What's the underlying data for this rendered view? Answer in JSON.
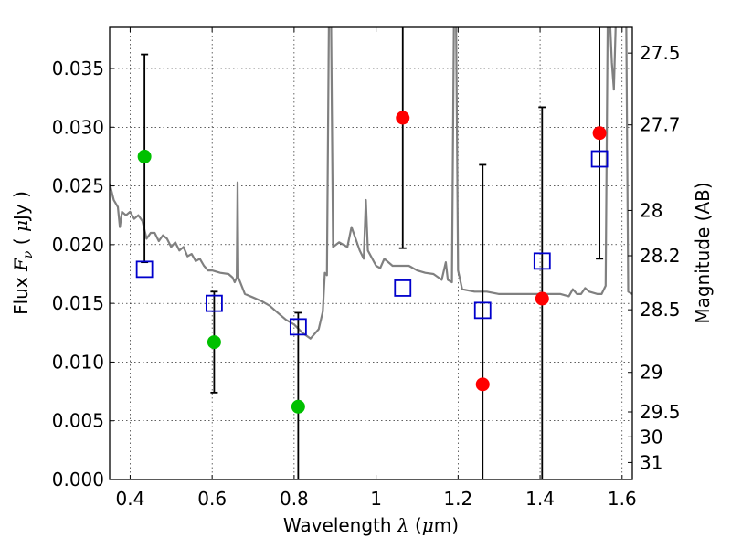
{
  "chart_data": {
    "type": "scatter",
    "title": "",
    "xlabel": "Wavelength λ (μm)",
    "ylabel": "Flux F_ν ( μJy )",
    "y2label": "Magnitude (AB)",
    "xlabel_parts": {
      "main": "Wavelength ",
      "sym": "λ",
      "paren_open": " (",
      "unit": "μ",
      "unit_rest": "m)"
    },
    "ylabel_parts": {
      "main": "Flux ",
      "F": "F",
      "nu": "ν",
      "paren_open": " ( ",
      "mu": "μ",
      "rest": "Jy )"
    },
    "xlim": [
      0.35,
      1.625
    ],
    "ylim": [
      0.0,
      0.0385
    ],
    "grid": true,
    "x_ticks": [
      {
        "value": 0.4,
        "label": "0.4"
      },
      {
        "value": 0.6,
        "label": "0.6"
      },
      {
        "value": 0.8,
        "label": "0.8"
      },
      {
        "value": 1.0,
        "label": "1"
      },
      {
        "value": 1.2,
        "label": "1.2"
      },
      {
        "value": 1.4,
        "label": "1.4"
      },
      {
        "value": 1.6,
        "label": "1.6"
      }
    ],
    "y_ticks": [
      {
        "value": 0.0,
        "label": "0.000"
      },
      {
        "value": 0.005,
        "label": "0.005"
      },
      {
        "value": 0.01,
        "label": "0.010"
      },
      {
        "value": 0.015,
        "label": "0.015"
      },
      {
        "value": 0.02,
        "label": "0.020"
      },
      {
        "value": 0.025,
        "label": "0.025"
      },
      {
        "value": 0.03,
        "label": "0.030"
      },
      {
        "value": 0.035,
        "label": "0.035"
      }
    ],
    "y2_ticks": [
      {
        "mag": 27.5,
        "label": "27.5"
      },
      {
        "mag": 27.7,
        "label": "27.7"
      },
      {
        "mag": 28.0,
        "label": "28"
      },
      {
        "mag": 28.2,
        "label": "28.2"
      },
      {
        "mag": 28.5,
        "label": "28.5"
      },
      {
        "mag": 29.0,
        "label": "29"
      },
      {
        "mag": 29.5,
        "label": "29.5"
      },
      {
        "mag": 30.0,
        "label": "30"
      },
      {
        "mag": 31.0,
        "label": "31"
      }
    ],
    "series": [
      {
        "kind": "line",
        "color": "#808080",
        "points": [
          [
            0.35,
            0.0252
          ],
          [
            0.36,
            0.0238
          ],
          [
            0.37,
            0.0232
          ],
          [
            0.375,
            0.0215
          ],
          [
            0.38,
            0.0228
          ],
          [
            0.39,
            0.0225
          ],
          [
            0.4,
            0.0228
          ],
          [
            0.41,
            0.0222
          ],
          [
            0.42,
            0.0225
          ],
          [
            0.43,
            0.022
          ],
          [
            0.44,
            0.0205
          ],
          [
            0.45,
            0.021
          ],
          [
            0.46,
            0.021
          ],
          [
            0.47,
            0.0203
          ],
          [
            0.48,
            0.0208
          ],
          [
            0.49,
            0.0205
          ],
          [
            0.5,
            0.0198
          ],
          [
            0.51,
            0.0202
          ],
          [
            0.52,
            0.0195
          ],
          [
            0.53,
            0.0198
          ],
          [
            0.54,
            0.019
          ],
          [
            0.55,
            0.0192
          ],
          [
            0.56,
            0.0186
          ],
          [
            0.57,
            0.0188
          ],
          [
            0.58,
            0.0182
          ],
          [
            0.59,
            0.0178
          ],
          [
            0.6,
            0.0178
          ],
          [
            0.62,
            0.0176
          ],
          [
            0.64,
            0.0175
          ],
          [
            0.65,
            0.0172
          ],
          [
            0.655,
            0.0168
          ],
          [
            0.66,
            0.0172
          ],
          [
            0.662,
            0.0253
          ],
          [
            0.664,
            0.0172
          ],
          [
            0.68,
            0.0158
          ],
          [
            0.7,
            0.0155
          ],
          [
            0.72,
            0.0152
          ],
          [
            0.74,
            0.0148
          ],
          [
            0.76,
            0.0142
          ],
          [
            0.78,
            0.0136
          ],
          [
            0.8,
            0.0132
          ],
          [
            0.82,
            0.0125
          ],
          [
            0.84,
            0.012
          ],
          [
            0.86,
            0.0128
          ],
          [
            0.87,
            0.0143
          ],
          [
            0.875,
            0.0176
          ],
          [
            0.88,
            0.0174
          ],
          [
            0.885,
            0.0395
          ],
          [
            0.89,
            0.0395
          ],
          [
            0.895,
            0.0198
          ],
          [
            0.91,
            0.0202
          ],
          [
            0.93,
            0.0198
          ],
          [
            0.94,
            0.0215
          ],
          [
            0.95,
            0.0205
          ],
          [
            0.96,
            0.0195
          ],
          [
            0.97,
            0.0188
          ],
          [
            0.975,
            0.0238
          ],
          [
            0.98,
            0.0195
          ],
          [
            1.0,
            0.0182
          ],
          [
            1.01,
            0.018
          ],
          [
            1.02,
            0.0188
          ],
          [
            1.04,
            0.0182
          ],
          [
            1.06,
            0.0182
          ],
          [
            1.08,
            0.0182
          ],
          [
            1.1,
            0.0178
          ],
          [
            1.12,
            0.0176
          ],
          [
            1.14,
            0.0175
          ],
          [
            1.16,
            0.017
          ],
          [
            1.17,
            0.0185
          ],
          [
            1.175,
            0.017
          ],
          [
            1.185,
            0.0168
          ],
          [
            1.19,
            0.0395
          ],
          [
            1.195,
            0.0395
          ],
          [
            1.2,
            0.0178
          ],
          [
            1.21,
            0.0162
          ],
          [
            1.24,
            0.016
          ],
          [
            1.27,
            0.016
          ],
          [
            1.3,
            0.0158
          ],
          [
            1.35,
            0.0158
          ],
          [
            1.4,
            0.0158
          ],
          [
            1.45,
            0.0158
          ],
          [
            1.47,
            0.0156
          ],
          [
            1.48,
            0.0162
          ],
          [
            1.49,
            0.0158
          ],
          [
            1.5,
            0.0158
          ],
          [
            1.51,
            0.0163
          ],
          [
            1.52,
            0.016
          ],
          [
            1.54,
            0.0158
          ],
          [
            1.55,
            0.0158
          ],
          [
            1.56,
            0.0165
          ],
          [
            1.565,
            0.0395
          ],
          [
            1.57,
            0.0395
          ],
          [
            1.575,
            0.0355
          ],
          [
            1.58,
            0.0332
          ],
          [
            1.585,
            0.0395
          ],
          [
            1.595,
            0.0395
          ],
          [
            1.6,
            0.0395
          ],
          [
            1.61,
            0.0395
          ],
          [
            1.615,
            0.016
          ],
          [
            1.625,
            0.0158
          ]
        ]
      },
      {
        "kind": "errorbar",
        "color": "#000000",
        "bars": [
          {
            "x": 0.435,
            "ylow": 0.0185,
            "yhigh": 0.0362
          },
          {
            "x": 0.605,
            "ylow": 0.0074,
            "yhigh": 0.016
          },
          {
            "x": 0.81,
            "ylow": 0.0,
            "yhigh": 0.0142
          },
          {
            "x": 1.065,
            "ylow": 0.0197,
            "yhigh": 0.0395
          },
          {
            "x": 1.26,
            "ylow": 0.0,
            "yhigh": 0.0268
          },
          {
            "x": 1.405,
            "ylow": 0.0,
            "yhigh": 0.0317
          },
          {
            "x": 1.545,
            "ylow": 0.0188,
            "yhigh": 0.0395
          }
        ]
      },
      {
        "kind": "scatter",
        "color": "#00c000",
        "marker": "circle",
        "points": [
          [
            0.435,
            0.0275
          ],
          [
            0.605,
            0.0117
          ],
          [
            0.81,
            0.0062
          ]
        ]
      },
      {
        "kind": "scatter",
        "color": "#ff0000",
        "marker": "circle",
        "points": [
          [
            1.065,
            0.0308
          ],
          [
            1.26,
            0.0081
          ],
          [
            1.405,
            0.0154
          ],
          [
            1.545,
            0.0295
          ]
        ]
      },
      {
        "kind": "scatter",
        "color": "#0000cc",
        "marker": "square-open",
        "points": [
          [
            0.435,
            0.0179
          ],
          [
            0.605,
            0.015
          ],
          [
            0.81,
            0.013
          ],
          [
            1.065,
            0.0163
          ],
          [
            1.26,
            0.0144
          ],
          [
            1.405,
            0.0186
          ],
          [
            1.545,
            0.0273
          ]
        ]
      }
    ]
  }
}
